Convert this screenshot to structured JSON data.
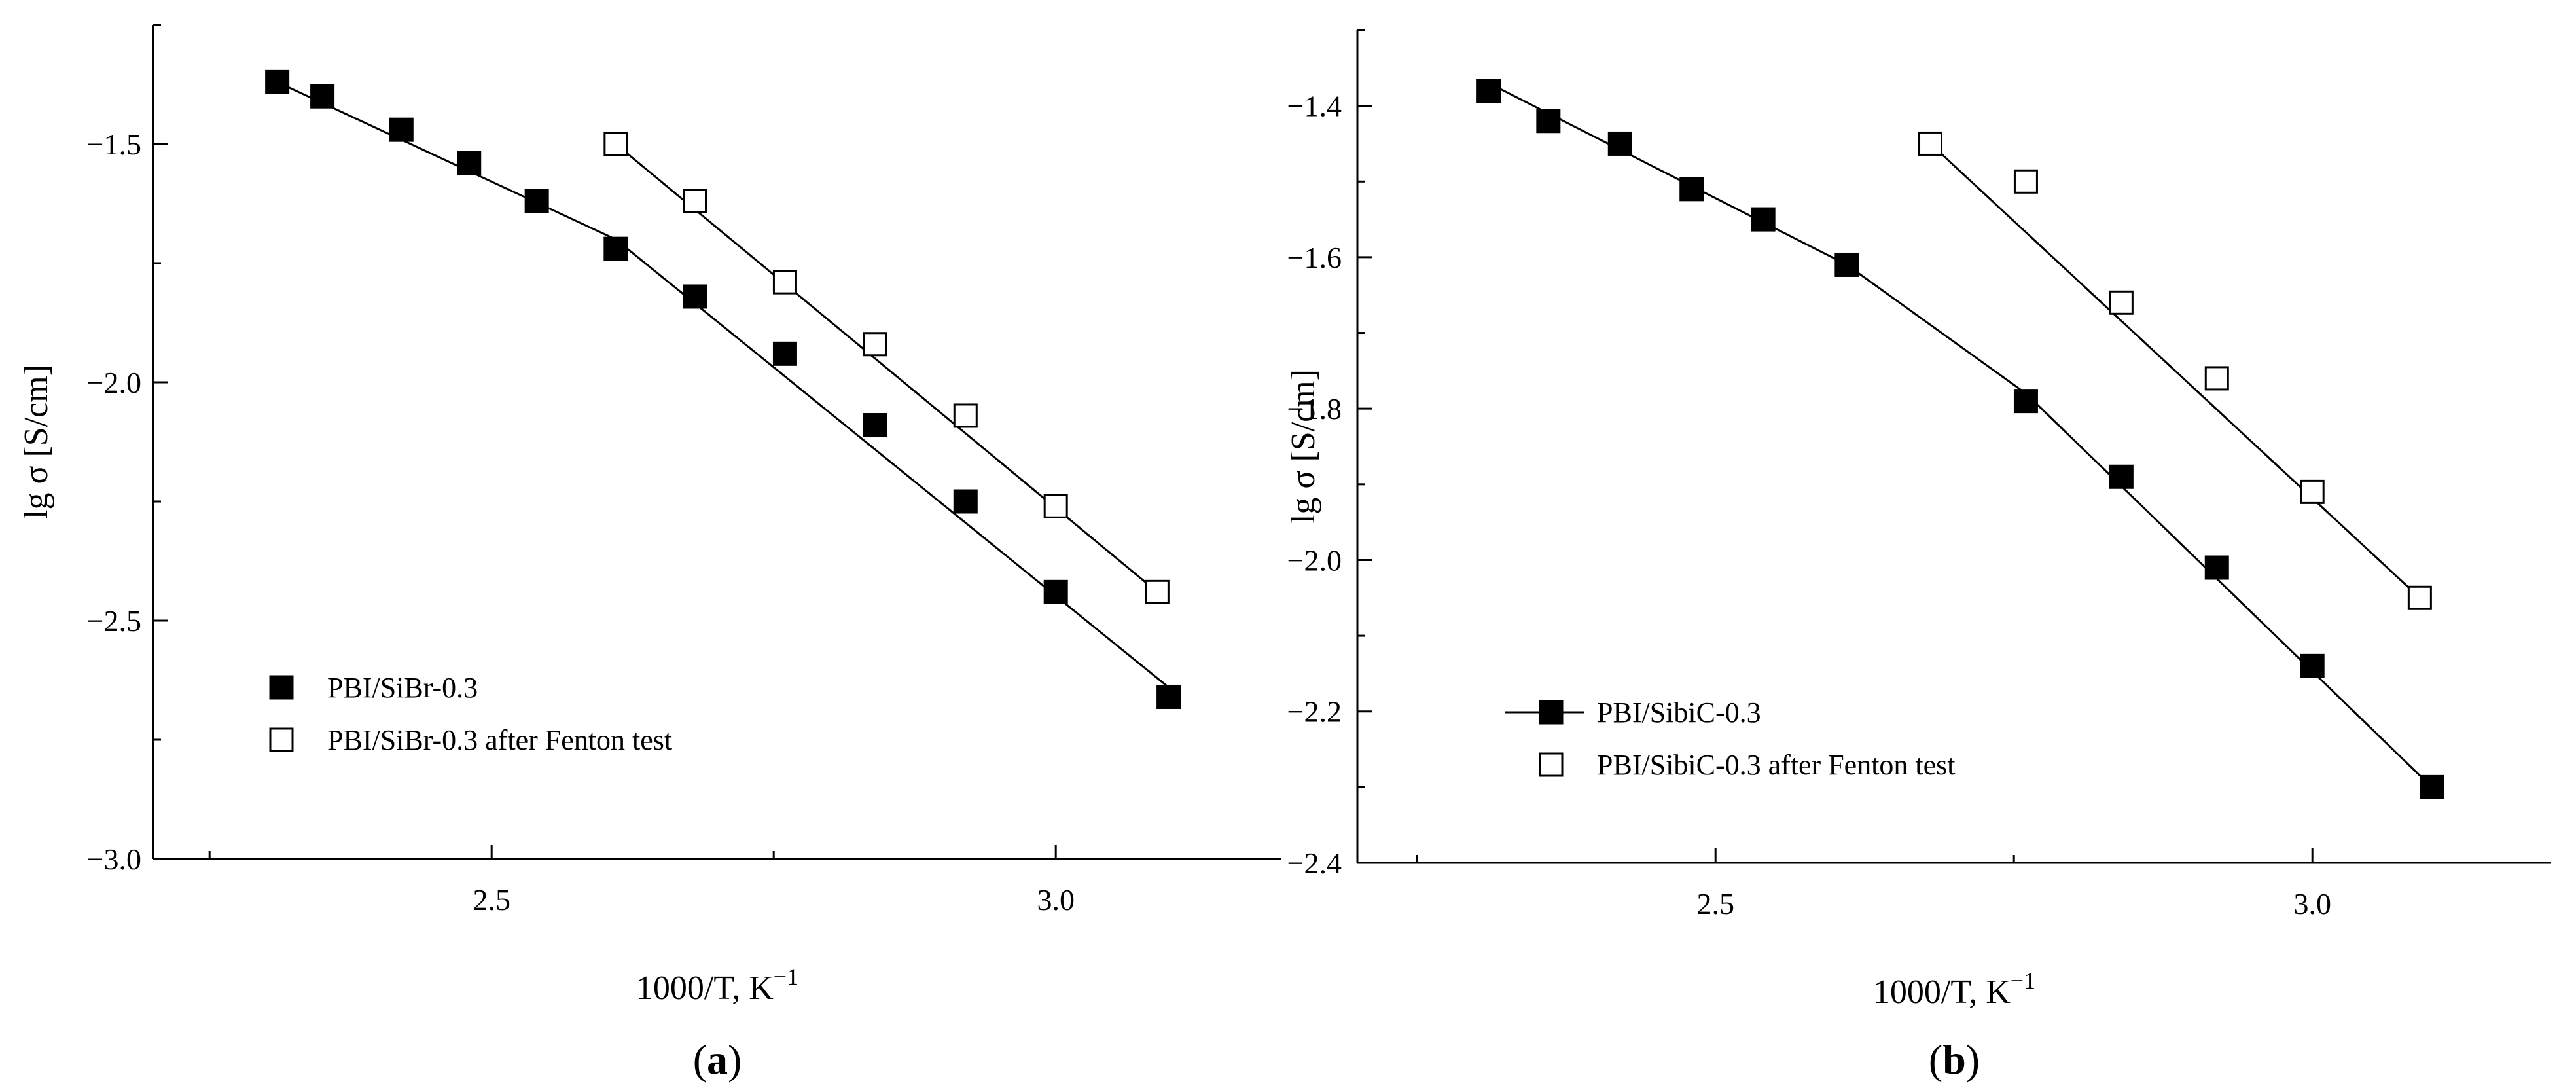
{
  "chart_data": [
    {
      "type": "scatter",
      "panel_label_parts": [
        "(",
        "a",
        ")"
      ],
      "xlabel_parts": [
        "1000/T, K",
        "−1"
      ],
      "ylabel": "lg σ [S/cm]",
      "xlim": [
        2.2,
        3.2
      ],
      "ylim": [
        -3.0,
        -1.25
      ],
      "x_ticks": [
        {
          "value": 2.5,
          "label": "2.5"
        },
        {
          "value": 3.0,
          "label": "3.0"
        }
      ],
      "x_minor_ticks": [
        2.25,
        2.75
      ],
      "y_ticks": [
        {
          "value": -1.5,
          "label": "−1.5"
        },
        {
          "value": -2.0,
          "label": "−2.0"
        },
        {
          "value": -2.5,
          "label": "−2.5"
        },
        {
          "value": -3.0,
          "label": "−3.0"
        }
      ],
      "y_minor_ticks": [
        -1.25,
        -1.75,
        -2.25,
        -2.75
      ],
      "legend_position": "bottom-left",
      "series": [
        {
          "name": "PBI/SiBr-0.3",
          "marker": "filled-square",
          "x": [
            2.31,
            2.35,
            2.42,
            2.48,
            2.54,
            2.61,
            2.68,
            2.76,
            2.84,
            2.92,
            3.0,
            3.1
          ],
          "y": [
            -1.37,
            -1.4,
            -1.47,
            -1.54,
            -1.62,
            -1.72,
            -1.82,
            -1.94,
            -2.09,
            -2.25,
            -2.44,
            -2.66
          ],
          "fit_line": [
            [
              2.31,
              -1.37
            ],
            [
              2.61,
              -1.7
            ],
            [
              3.1,
              -2.64
            ]
          ]
        },
        {
          "name": "PBI/SiBr-0.3 after Fenton test",
          "marker": "open-square",
          "x": [
            2.61,
            2.68,
            2.76,
            2.84,
            2.92,
            3.0,
            3.09
          ],
          "y": [
            -1.5,
            -1.62,
            -1.79,
            -1.92,
            -2.07,
            -2.26,
            -2.44
          ],
          "fit_line": [
            [
              2.61,
              -1.5
            ],
            [
              3.09,
              -2.44
            ]
          ]
        }
      ]
    },
    {
      "type": "scatter",
      "panel_label_parts": [
        "(",
        "b",
        ")"
      ],
      "xlabel_parts": [
        "1000/T, K",
        "−1"
      ],
      "ylabel": "lg σ [S/cm]",
      "xlim": [
        2.2,
        3.2
      ],
      "ylim": [
        -2.4,
        -1.3
      ],
      "x_ticks": [
        {
          "value": 2.5,
          "label": "2.5"
        },
        {
          "value": 3.0,
          "label": "3.0"
        }
      ],
      "x_minor_ticks": [
        2.25,
        2.75
      ],
      "y_ticks": [
        {
          "value": -1.4,
          "label": "−1.4"
        },
        {
          "value": -1.6,
          "label": "−1.6"
        },
        {
          "value": -1.8,
          "label": "−1.8"
        },
        {
          "value": -2.0,
          "label": "−2.0"
        },
        {
          "value": -2.2,
          "label": "−2.2"
        },
        {
          "value": -2.4,
          "label": "−2.4"
        }
      ],
      "y_minor_ticks": [
        -1.3,
        -1.5,
        -1.7,
        -1.9,
        -2.1,
        -2.3
      ],
      "legend_position": "bottom-left",
      "series": [
        {
          "name": "PBI/SibiC-0.3",
          "marker": "filled-square",
          "x": [
            2.31,
            2.36,
            2.42,
            2.48,
            2.54,
            2.61,
            2.76,
            2.84,
            2.92,
            3.0,
            3.1
          ],
          "y": [
            -1.38,
            -1.42,
            -1.45,
            -1.51,
            -1.55,
            -1.61,
            -1.79,
            -1.89,
            -2.01,
            -2.14,
            -2.3
          ],
          "fit_line": [
            [
              2.31,
              -1.37
            ],
            [
              2.61,
              -1.61
            ],
            [
              2.76,
              -1.78
            ],
            [
              3.1,
              -2.3
            ]
          ]
        },
        {
          "name": "PBI/SibiC-0.3 after Fenton test",
          "marker": "open-square",
          "x": [
            2.68,
            2.76,
            2.84,
            2.92,
            3.0,
            3.09
          ],
          "y": [
            -1.45,
            -1.5,
            -1.66,
            -1.76,
            -1.91,
            -2.05
          ],
          "fit_line": [
            [
              2.68,
              -1.45
            ],
            [
              3.09,
              -2.05
            ]
          ]
        }
      ]
    }
  ]
}
